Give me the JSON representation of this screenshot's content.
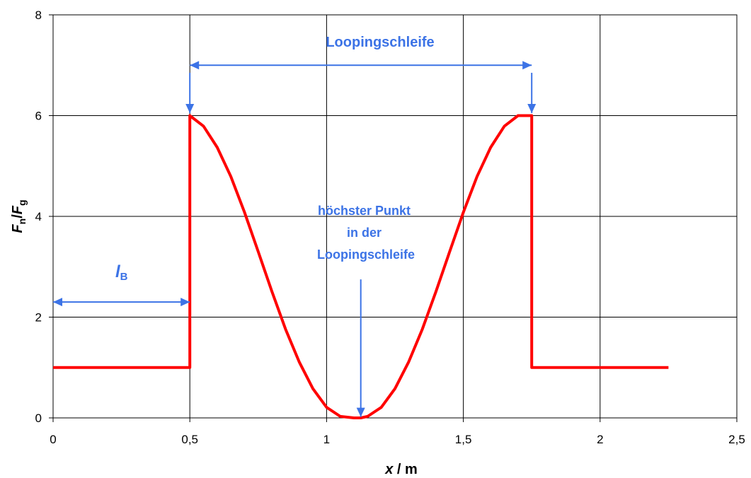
{
  "chart_data": {
    "type": "line",
    "xlabel": "x / m",
    "ylabel_parts": {
      "F1": "F",
      "n": "n",
      "sep": "/",
      "F2": "F",
      "g": "g"
    },
    "xlim": [
      0,
      2.5
    ],
    "ylim": [
      0,
      8
    ],
    "xticks": [
      {
        "v": 0,
        "label": "0"
      },
      {
        "v": 0.5,
        "label": "0,5"
      },
      {
        "v": 1,
        "label": "1"
      },
      {
        "v": 1.5,
        "label": "1,5"
      },
      {
        "v": 2,
        "label": "2"
      },
      {
        "v": 2.5,
        "label": "2,5"
      }
    ],
    "yticks": [
      {
        "v": 0,
        "label": "0"
      },
      {
        "v": 2,
        "label": "2"
      },
      {
        "v": 4,
        "label": "4"
      },
      {
        "v": 6,
        "label": "6"
      },
      {
        "v": 8,
        "label": "8"
      }
    ],
    "grid": true,
    "series": [
      {
        "color": "#ff0000",
        "x": [
          0,
          0.5,
          0.5,
          0.55,
          0.6,
          0.65,
          0.7,
          0.75,
          0.8,
          0.85,
          0.9,
          0.95,
          1.0,
          1.05,
          1.1,
          1.125,
          1.15,
          1.2,
          1.25,
          1.3,
          1.35,
          1.4,
          1.45,
          1.5,
          1.55,
          1.6,
          1.65,
          1.7,
          1.75,
          1.75,
          2.25
        ],
        "y": [
          1,
          1,
          6,
          5.79,
          5.37,
          4.79,
          4.08,
          3.3,
          2.51,
          1.76,
          1.11,
          0.58,
          0.21,
          0.03,
          0.0,
          0.0,
          0.03,
          0.21,
          0.58,
          1.11,
          1.76,
          2.51,
          3.3,
          4.08,
          4.79,
          5.37,
          5.79,
          6.0,
          6.0,
          1,
          1
        ]
      }
    ],
    "annotations": {
      "loop_label": "Loopingschleife",
      "top_point_lines": [
        "höchster Punkt",
        "in der",
        "Loopingschleife"
      ],
      "lb_main": "l",
      "lb_sub": "B"
    },
    "annotation_color": "#3c73e6",
    "arrows": [
      {
        "kind": "double",
        "x1": 0.5,
        "y1": 7.0,
        "x2": 1.75,
        "y2": 7.0
      },
      {
        "kind": "single",
        "x1": 0.5,
        "y1": 6.85,
        "x2": 0.5,
        "y2": 6.05
      },
      {
        "kind": "single",
        "x1": 1.75,
        "y1": 6.85,
        "x2": 1.75,
        "y2": 6.05
      },
      {
        "kind": "single",
        "x1": 1.125,
        "y1": 2.75,
        "x2": 1.125,
        "y2": 0.02
      },
      {
        "kind": "double",
        "x1": 0.0,
        "y1": 2.3,
        "x2": 0.5,
        "y2": 2.3
      }
    ]
  }
}
